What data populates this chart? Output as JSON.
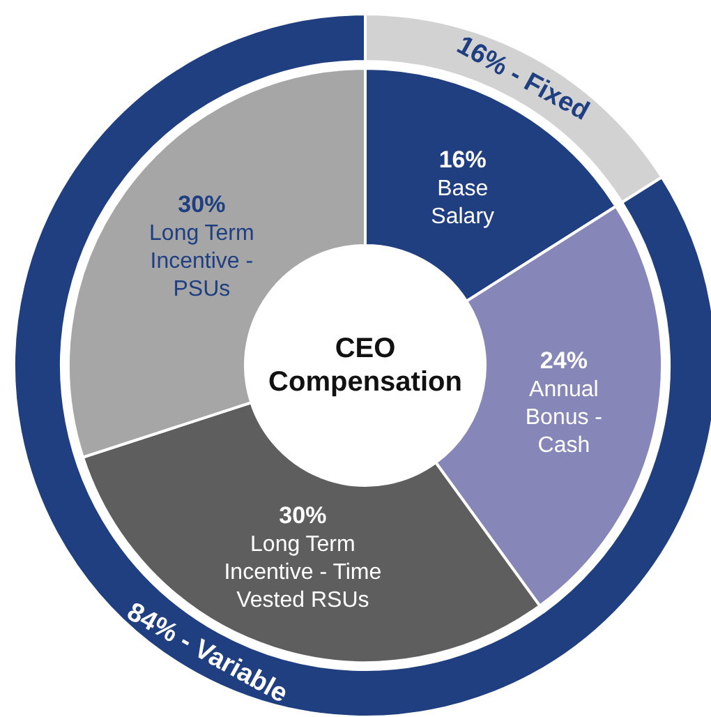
{
  "chart_data": [
    {
      "type": "donut",
      "title": "CEO Compensation",
      "categories": [
        "Base Salary",
        "Annual Bonus - Cash",
        "Long Term Incentive - Time Vested RSUs",
        "Long Term Incentive - PSUs"
      ],
      "values": [
        16,
        24,
        30,
        30
      ],
      "value_labels": [
        "16%",
        "24%",
        "30%",
        "30%"
      ],
      "colors": [
        "#1f3f80",
        "#8686b8",
        "#5e5e5e",
        "#a6a6a6"
      ]
    },
    {
      "type": "donut",
      "categories": [
        "16% - Fixed",
        "84% - Variable"
      ],
      "values": [
        16,
        84
      ],
      "colors": [
        "#d2d2d2",
        "#1f3f80"
      ]
    }
  ]
}
